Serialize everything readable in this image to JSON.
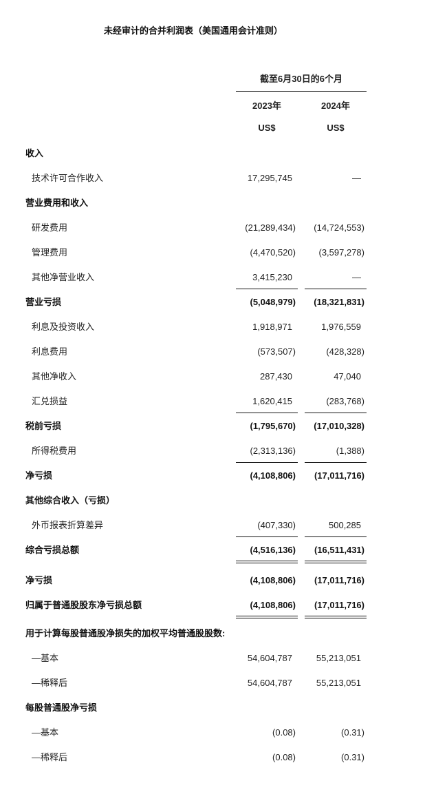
{
  "title": "未经审计的合并利润表（美国通用会计准则）",
  "header": {
    "period": "截至6月30日的6个月",
    "years": [
      "2023年",
      "2024年"
    ],
    "currency": [
      "US$",
      "US$"
    ]
  },
  "rows": [
    {
      "label": "收入",
      "bold": true,
      "indent": false,
      "v2023": "",
      "v2024": ""
    },
    {
      "label": "技术许可合作收入",
      "bold": false,
      "indent": true,
      "v2023": "17,295,745",
      "v2024": "—"
    },
    {
      "label": "营业费用和收入",
      "bold": true,
      "indent": false,
      "v2023": "",
      "v2024": ""
    },
    {
      "label": "研发费用",
      "bold": false,
      "indent": true,
      "v2023": "(21,289,434)",
      "v2024": "(14,724,553)"
    },
    {
      "label": "管理费用",
      "bold": false,
      "indent": true,
      "v2023": "(4,470,520)",
      "v2024": "(3,597,278)"
    },
    {
      "label": "其他净营业收入",
      "bold": false,
      "indent": true,
      "v2023": "3,415,230",
      "v2024": "—",
      "rule": "single"
    },
    {
      "label": "营业亏损",
      "bold": true,
      "indent": false,
      "v2023": "(5,048,979)",
      "v2024": "(18,321,831)"
    },
    {
      "label": "利息及投资收入",
      "bold": false,
      "indent": true,
      "v2023": "1,918,971",
      "v2024": "1,976,559"
    },
    {
      "label": "利息费用",
      "bold": false,
      "indent": true,
      "v2023": "(573,507)",
      "v2024": "(428,328)"
    },
    {
      "label": "其他净收入",
      "bold": false,
      "indent": true,
      "v2023": "287,430",
      "v2024": "47,040"
    },
    {
      "label": "汇兑损益",
      "bold": false,
      "indent": true,
      "v2023": "1,620,415",
      "v2024": "(283,768)",
      "rule": "single"
    },
    {
      "label": "税前亏损",
      "bold": true,
      "indent": false,
      "v2023": "(1,795,670)",
      "v2024": "(17,010,328)"
    },
    {
      "label": "所得税费用",
      "bold": false,
      "indent": true,
      "v2023": "(2,313,136)",
      "v2024": "(1,388)",
      "rule": "single"
    },
    {
      "label": "净亏损",
      "bold": true,
      "indent": false,
      "v2023": "(4,108,806)",
      "v2024": "(17,011,716)"
    },
    {
      "label": "其他综合收入（亏损）",
      "bold": true,
      "indent": false,
      "v2023": "",
      "v2024": ""
    },
    {
      "label": "外币报表折算差异",
      "bold": false,
      "indent": true,
      "v2023": "(407,330)",
      "v2024": "500,285",
      "rule": "single"
    },
    {
      "label": "综合亏损总额",
      "bold": true,
      "indent": false,
      "v2023": "(4,516,136)",
      "v2024": "(16,511,431)",
      "rule": "double"
    },
    {
      "label": "净亏损",
      "bold": true,
      "indent": false,
      "v2023": "(4,108,806)",
      "v2024": "(17,011,716)"
    },
    {
      "label": "归属于普通股股东净亏损总额",
      "bold": true,
      "indent": false,
      "v2023": "(4,108,806)",
      "v2024": "(17,011,716)",
      "rule": "double"
    },
    {
      "label": "用于计算每股普通股净损失的加权平均普通股股数:",
      "bold": true,
      "indent": false,
      "v2023": "",
      "v2024": ""
    },
    {
      "label": "—基本",
      "bold": false,
      "indent": true,
      "v2023": "54,604,787",
      "v2024": "55,213,051"
    },
    {
      "label": "—稀释后",
      "bold": false,
      "indent": true,
      "v2023": "54,604,787",
      "v2024": "55,213,051"
    },
    {
      "label": "每股普通股净亏损",
      "bold": true,
      "indent": false,
      "v2023": "",
      "v2024": ""
    },
    {
      "label": "—基本",
      "bold": false,
      "indent": true,
      "v2023": "(0.08)",
      "v2024": "(0.31)"
    },
    {
      "label": "—稀释后",
      "bold": false,
      "indent": true,
      "v2023": "(0.08)",
      "v2024": "(0.31)"
    }
  ]
}
